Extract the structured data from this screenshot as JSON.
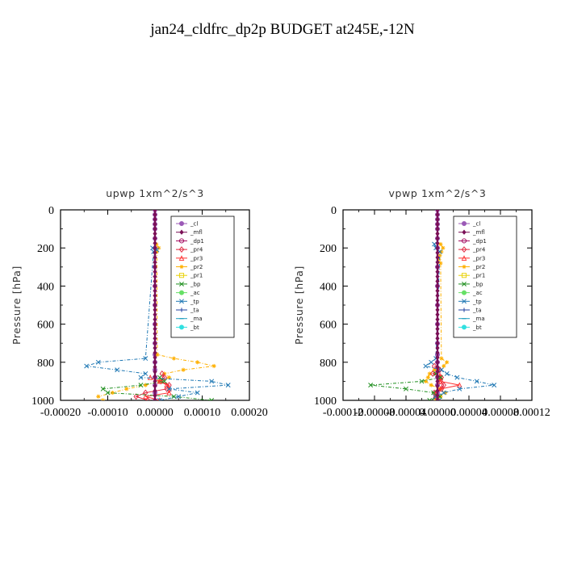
{
  "figure": {
    "title": "jan24_cldfrc_dp2p  BUDGET at245E,-12N"
  },
  "legend": [
    {
      "name": "_cl",
      "color": "#9b59b6",
      "marker": "circle"
    },
    {
      "name": "_mfl",
      "color": "#7a0f56",
      "marker": "diamond"
    },
    {
      "name": "_dp1",
      "color": "#a0005a",
      "marker": "circle-open"
    },
    {
      "name": "_pr4",
      "color": "#e0213a",
      "marker": "diamond-open"
    },
    {
      "name": "_pr3",
      "color": "#ff3030",
      "marker": "tri-open"
    },
    {
      "name": "_pr2",
      "color": "#ffb000",
      "marker": "star"
    },
    {
      "name": "_pr1",
      "color": "#e8d000",
      "marker": "square-open"
    },
    {
      "name": "_bp",
      "color": "#1f8f1f",
      "marker": "x"
    },
    {
      "name": "_ac",
      "color": "#66e066",
      "marker": "circle"
    },
    {
      "name": "_tp",
      "color": "#1f78b4",
      "marker": "x"
    },
    {
      "name": "_ta",
      "color": "#2040a0",
      "marker": "plus"
    },
    {
      "name": "_ma",
      "color": "#1f9fbf",
      "marker": "dash"
    },
    {
      "name": "_bt",
      "color": "#30e0e0",
      "marker": "circle"
    }
  ],
  "chart_data": [
    {
      "type": "line",
      "title": "upwp   1xm^2/s^3",
      "xlabel": "",
      "ylabel": "Pressure [hPa]",
      "xlim": [
        -0.0002,
        0.0002
      ],
      "ylim": [
        1000,
        0
      ],
      "x_ticks": [
        -0.0002,
        -0.0001,
        0,
        0.0001,
        0.0002
      ],
      "x_tick_labels": [
        "-0.00020",
        "-0.00010",
        "0.00000",
        "0.00010",
        "0.00020"
      ],
      "y_ticks": [
        0,
        200,
        400,
        600,
        800,
        1000
      ],
      "legend_position": "top-right",
      "series": [
        {
          "name": "_cl",
          "y": [
            0,
            25,
            50,
            75,
            100,
            150,
            200,
            300,
            400,
            500,
            600,
            700,
            760,
            800,
            840,
            880,
            920,
            960,
            1000
          ],
          "x": [
            0,
            0,
            0,
            0,
            0,
            0,
            0,
            0,
            0,
            0,
            0,
            0,
            0,
            0,
            0,
            0,
            0,
            0,
            0
          ]
        },
        {
          "name": "_pr2",
          "y": [
            180,
            200,
            220,
            760,
            780,
            800,
            820,
            840,
            860,
            880,
            900,
            920,
            940,
            960,
            980,
            1000
          ],
          "x": [
            3e-06,
            8e-06,
            4e-06,
            5e-06,
            4e-05,
            9e-05,
            0.000125,
            6e-05,
            2e-05,
            3e-05,
            1e-05,
            -2e-05,
            -6e-05,
            -9e-05,
            -0.00012,
            -0.00011
          ]
        },
        {
          "name": "_pr4",
          "y": [
            860,
            880,
            900,
            920,
            940,
            960,
            980,
            1000
          ],
          "x": [
            1.5e-05,
            2e-05,
            1.2e-05,
            3e-05,
            2.5e-05,
            -2e-05,
            -4e-05,
            -1.5e-05
          ]
        },
        {
          "name": "_pr3",
          "y": [
            880,
            900,
            920,
            940,
            960,
            980,
            1000
          ],
          "x": [
            -1e-05,
            1e-05,
            2.5e-05,
            3e-05,
            3e-05,
            -2e-05,
            1e-05
          ]
        },
        {
          "name": "_bp",
          "y": [
            880,
            900,
            920,
            940,
            960,
            980,
            1000
          ],
          "x": [
            1e-05,
            2e-05,
            -3e-05,
            -0.00011,
            -0.0001,
            4e-05,
            0.00012
          ]
        },
        {
          "name": "_tp",
          "y": [
            200,
            210,
            220,
            780,
            800,
            820,
            840,
            860,
            880,
            900,
            920,
            940,
            960,
            980,
            1000
          ],
          "x": [
            -5e-06,
            4e-06,
            -3e-06,
            -2e-05,
            -0.00012,
            -0.000145,
            -8e-05,
            -2e-05,
            -3e-05,
            0.00012,
            0.000155,
            3e-05,
            9e-05,
            5e-05,
            1e-05
          ]
        },
        {
          "name": "_mfl",
          "y": [
            0,
            25,
            50,
            75,
            100,
            125,
            150,
            175,
            200,
            225,
            250,
            275,
            300,
            325,
            350,
            375,
            400,
            425,
            450,
            475,
            500,
            525,
            550,
            575,
            600,
            625,
            650,
            675,
            700,
            725,
            750,
            775,
            800,
            825,
            850,
            875,
            900,
            925,
            950,
            975,
            1000
          ],
          "x": [
            0,
            0,
            0,
            0,
            0,
            0,
            0,
            0,
            0,
            0,
            0,
            0,
            0,
            0,
            0,
            0,
            0,
            0,
            0,
            0,
            0,
            0,
            0,
            0,
            0,
            0,
            0,
            0,
            0,
            0,
            0,
            0,
            0,
            0,
            0,
            0,
            0,
            0,
            0,
            0,
            0
          ]
        }
      ]
    },
    {
      "type": "line",
      "title": "vpwp   1xm^2/s^3",
      "xlabel": "",
      "ylabel": "Pressure [hPa]",
      "xlim": [
        -0.00012,
        0.00012
      ],
      "ylim": [
        1000,
        0
      ],
      "x_ticks": [
        -0.00012,
        -8e-05,
        -4e-05,
        0,
        4e-05,
        8e-05,
        0.00012
      ],
      "x_tick_labels": [
        "-0.00012",
        "-0.00008",
        "-0.00004",
        "0.00000",
        "0.00004",
        "0.00008",
        "0.00012"
      ],
      "y_ticks": [
        0,
        200,
        400,
        600,
        800,
        1000
      ],
      "legend_position": "top-right",
      "series": [
        {
          "name": "_cl",
          "y": [
            0,
            25,
            50,
            75,
            100,
            150,
            200,
            300,
            400,
            500,
            600,
            700,
            760,
            800,
            840,
            880,
            920,
            960,
            1000
          ],
          "x": [
            0,
            0,
            0,
            0,
            0,
            0,
            0,
            0,
            0,
            0,
            0,
            0,
            0,
            0,
            0,
            0,
            0,
            0,
            0
          ]
        },
        {
          "name": "_pr2",
          "y": [
            180,
            200,
            220,
            240,
            260,
            280,
            780,
            800,
            820,
            840,
            860,
            880,
            900,
            920,
            940,
            960,
            980,
            1000
          ],
          "x": [
            4e-06,
            7e-06,
            5e-06,
            3e-06,
            2e-06,
            4e-06,
            5e-06,
            1.2e-05,
            8e-06,
            -4e-06,
            -1e-05,
            -1.2e-05,
            -1.5e-05,
            -8e-06,
            3e-06,
            1e-05,
            4e-06,
            -2e-06
          ]
        },
        {
          "name": "_pr4",
          "y": [
            820,
            840,
            860,
            880,
            900,
            920,
            940,
            960,
            980,
            1000
          ],
          "x": [
            -4e-06,
            3e-06,
            -6e-06,
            5e-06,
            4e-06,
            8e-06,
            5e-06,
            -4e-06,
            -2e-06,
            1e-06
          ]
        },
        {
          "name": "_pr3",
          "y": [
            860,
            880,
            900,
            920,
            940,
            960,
            980,
            1000
          ],
          "x": [
            2e-06,
            4e-06,
            3e-06,
            2.8e-05,
            4e-06,
            -2e-06,
            -3e-06,
            0
          ]
        },
        {
          "name": "_bp",
          "y": [
            860,
            880,
            900,
            920,
            940,
            960,
            980,
            1000
          ],
          "x": [
            -2e-06,
            4e-06,
            -2e-05,
            -8.5e-05,
            -4e-05,
            -5e-06,
            3e-06,
            -1e-05
          ]
        },
        {
          "name": "_tp",
          "y": [
            180,
            200,
            220,
            780,
            800,
            820,
            840,
            860,
            880,
            900,
            920,
            940,
            960,
            980,
            1000
          ],
          "x": [
            -4e-06,
            -2e-06,
            3e-06,
            -2e-06,
            -8e-06,
            -1.5e-05,
            5e-06,
            1.2e-05,
            2.5e-05,
            5e-05,
            7.2e-05,
            2.8e-05,
            8e-06,
            -3e-06,
            2e-06
          ]
        },
        {
          "name": "_mfl",
          "y": [
            0,
            25,
            50,
            75,
            100,
            125,
            150,
            175,
            200,
            225,
            250,
            275,
            300,
            325,
            350,
            375,
            400,
            425,
            450,
            475,
            500,
            525,
            550,
            575,
            600,
            625,
            650,
            675,
            700,
            725,
            750,
            775,
            800,
            825,
            850,
            875,
            900,
            925,
            950,
            975,
            1000
          ],
          "x": [
            0,
            0,
            0,
            0,
            0,
            0,
            0,
            0,
            0,
            0,
            0,
            0,
            0,
            0,
            0,
            0,
            0,
            0,
            0,
            0,
            0,
            0,
            0,
            0,
            0,
            0,
            0,
            0,
            0,
            0,
            0,
            0,
            0,
            0,
            0,
            0,
            0,
            0,
            0,
            0,
            0
          ]
        }
      ]
    }
  ]
}
